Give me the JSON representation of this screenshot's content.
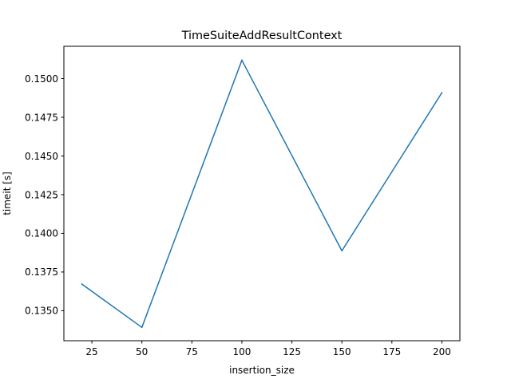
{
  "chart_data": {
    "type": "line",
    "title": "TimeSuiteAddResultContext",
    "xlabel": "insertion_size",
    "ylabel": "timeit [s]",
    "x": [
      20,
      50,
      100,
      150,
      200
    ],
    "series": [
      {
        "values": [
          0.13672,
          0.13392,
          0.15119,
          0.13887,
          0.14909
        ],
        "color": "#1f77b4"
      }
    ],
    "xlim": [
      11,
      209
    ],
    "ylim": [
      0.13306,
      0.15209
    ],
    "xticks": [
      25,
      50,
      75,
      100,
      125,
      150,
      175,
      200
    ],
    "yticks": [
      0.135,
      0.1375,
      0.14,
      0.1425,
      0.145,
      0.1475,
      0.15
    ],
    "ytick_labels": [
      "0.1350",
      "0.1375",
      "0.1400",
      "0.1425",
      "0.1450",
      "0.1475",
      "0.1500"
    ],
    "grid": false,
    "legend": false
  }
}
